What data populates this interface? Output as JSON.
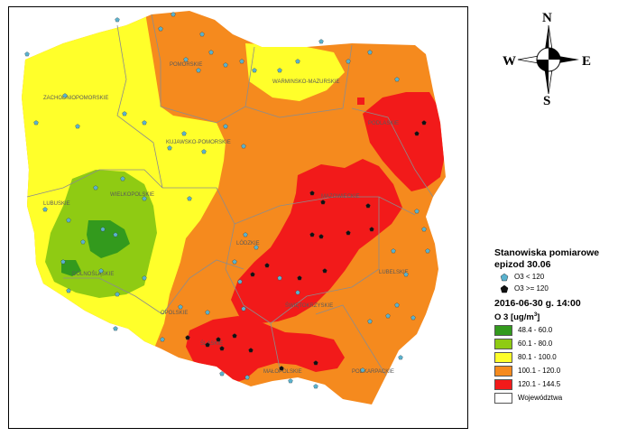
{
  "map": {
    "voivodeships": [
      {
        "name": "ZACHODNIOPOMORSKIE"
      },
      {
        "name": "POMORSKIE"
      },
      {
        "name": "WARMINSKO-MAZURSKIE"
      },
      {
        "name": "PODLASKIE"
      },
      {
        "name": "KUJAWSKO-POMORSKIE"
      },
      {
        "name": "LUBUSKIE"
      },
      {
        "name": "WIELKOPOLSKIE"
      },
      {
        "name": "MAZOWIECKIE"
      },
      {
        "name": "LÓDZKIE"
      },
      {
        "name": "LUBELSKIE"
      },
      {
        "name": "DOLNOŚLĄSKIE"
      },
      {
        "name": "OPOLSKIE"
      },
      {
        "name": "ŚWIĘTOKRZYSKIE"
      },
      {
        "name": "ŚLĄSKIE"
      },
      {
        "name": "MAŁOPOLSKIE"
      },
      {
        "name": "PODKARPACKIE"
      }
    ],
    "colors": {
      "c1": "#339a1d",
      "c2": "#8fcb13",
      "c3": "#ffff2a",
      "c4": "#f58a1e",
      "c5": "#f21a1a",
      "station_low": "#5ab2ce",
      "station_high": "#111111",
      "border": "#8c8c8c"
    }
  },
  "compass": {
    "n": "N",
    "s": "S",
    "e": "E",
    "w": "W"
  },
  "legend": {
    "stations_title": "Stanowiska pomiarowe",
    "episode": "epizod 30.06",
    "low_label": "O3 < 120",
    "high_label": "O3 >= 120",
    "datetime": "2016-06-30 g. 14:00",
    "unit": "O 3 [ug/m",
    "unit_sup": "3",
    "unit_end": "]",
    "classes": [
      {
        "label": "48.4 - 60.0",
        "color": "#339a1d"
      },
      {
        "label": "60.1 - 80.0",
        "color": "#8fcb13"
      },
      {
        "label": "80.1 - 100.0",
        "color": "#ffff2a"
      },
      {
        "label": "100.1 - 120.0",
        "color": "#f58a1e"
      },
      {
        "label": "120.1 - 144.5",
        "color": "#f21a1a"
      },
      {
        "label": "Województwa",
        "color": "#ffffff"
      }
    ]
  }
}
